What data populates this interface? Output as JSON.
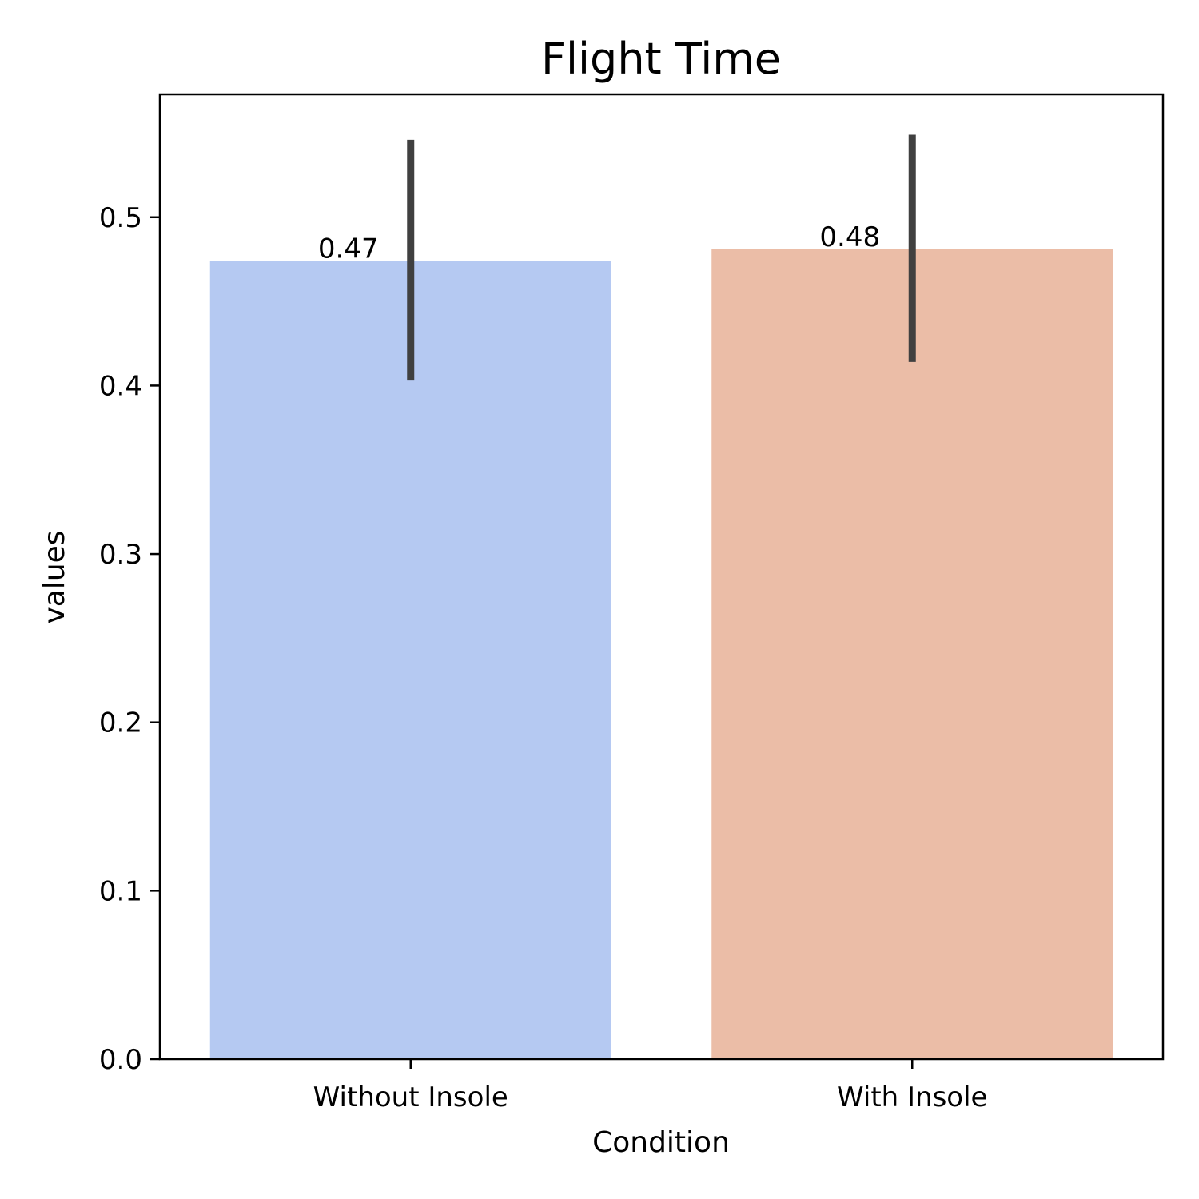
{
  "chart_data": {
    "type": "bar",
    "title": "Flight Time",
    "xlabel": "Condition",
    "ylabel": "values",
    "categories": [
      "Without Insole",
      "With Insole"
    ],
    "values": [
      0.474,
      0.481
    ],
    "value_labels": [
      "0.47",
      "0.48"
    ],
    "error_bars": [
      {
        "low": 0.403,
        "high": 0.546
      },
      {
        "low": 0.414,
        "high": 0.549
      }
    ],
    "colors": [
      "#b5c9f2",
      "#ebbda7"
    ],
    "error_color": "#404040",
    "ylim": [
      0,
      0.573
    ],
    "yticks": [
      0.0,
      0.1,
      0.2,
      0.3,
      0.4,
      0.5
    ],
    "ytick_labels": [
      "0.0",
      "0.1",
      "0.2",
      "0.3",
      "0.4",
      "0.5"
    ],
    "grid": false,
    "legend": "none"
  }
}
